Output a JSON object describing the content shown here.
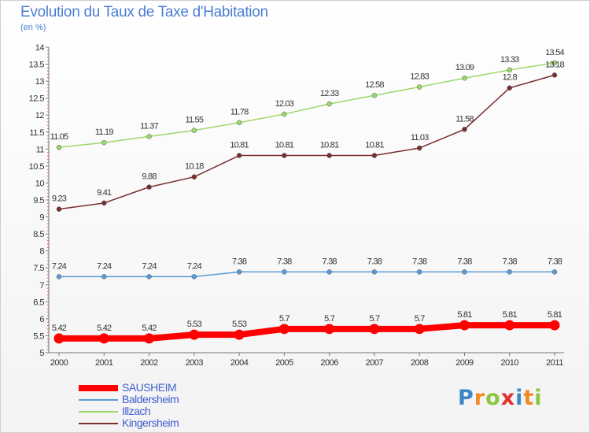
{
  "title": "Evolution du Taux de Taxe d'Habitation",
  "subtitle": "(en %)",
  "logo": {
    "letters": [
      "P",
      "r",
      "o",
      "x",
      "i",
      "t",
      "i"
    ],
    "colors": [
      "#3d86c7",
      "#f08a25",
      "#8cc63f",
      "#e2322e",
      "#3d86c7",
      "#f08a25",
      "#8cc63f"
    ]
  },
  "chart_data": {
    "type": "line",
    "x": [
      "2000",
      "2001",
      "2002",
      "2003",
      "2004",
      "2005",
      "2006",
      "2007",
      "2008",
      "2009",
      "2010",
      "2011"
    ],
    "ylim": [
      5,
      14
    ],
    "yticks": [
      "5",
      "5.5",
      "6",
      "6.5",
      "7",
      "7.5",
      "8",
      "8.5",
      "9",
      "9.5",
      "10",
      "10.5",
      "11",
      "11.5",
      "12",
      "12.5",
      "13",
      "13.5",
      "14"
    ],
    "grid": false,
    "legend_position": "bottom-left",
    "series": [
      {
        "name": "SAUSHEIM",
        "color": "#ff0000",
        "width": 8,
        "values": [
          5.42,
          5.42,
          5.42,
          5.53,
          5.53,
          5.7,
          5.7,
          5.7,
          5.7,
          5.81,
          5.81,
          5.81
        ],
        "labels": [
          "5.42",
          "5.42",
          "5.42",
          "5.53",
          "5.53",
          "5.7",
          "5.7",
          "5.7",
          "5.7",
          "5.81",
          "5.81",
          "5.81"
        ]
      },
      {
        "name": "Baldersheim",
        "color": "#5b9bd5",
        "width": 1.5,
        "values": [
          7.24,
          7.24,
          7.24,
          7.24,
          7.38,
          7.38,
          7.38,
          7.38,
          7.38,
          7.38,
          7.38,
          7.38
        ],
        "labels": [
          "7.24",
          "7.24",
          "7.24",
          "7.24",
          "7.38",
          "7.38",
          "7.38",
          "7.38",
          "7.38",
          "7.38",
          "7.38",
          "7.38"
        ]
      },
      {
        "name": "Illzach",
        "color": "#9bd86a",
        "width": 1.5,
        "values": [
          11.05,
          11.19,
          11.37,
          11.55,
          11.78,
          12.03,
          12.33,
          12.58,
          12.83,
          13.09,
          13.33,
          13.54
        ],
        "labels": [
          "11.05",
          "11.19",
          "11.37",
          "11.55",
          "11.78",
          "12.03",
          "12.33",
          "12.58",
          "12.83",
          "13.09",
          "13.33",
          "13.54"
        ]
      },
      {
        "name": "Kingersheim",
        "color": "#7a2e2e",
        "width": 1.5,
        "values": [
          9.23,
          9.41,
          9.88,
          10.18,
          10.81,
          10.81,
          10.81,
          10.81,
          11.03,
          11.58,
          12.8,
          13.18
        ],
        "labels": [
          "9.23",
          "9.41",
          "9.88",
          "10.18",
          "10.81",
          "10.81",
          "10.81",
          "10.81",
          "11.03",
          "11.58",
          "12.8",
          "13.18"
        ]
      }
    ]
  }
}
